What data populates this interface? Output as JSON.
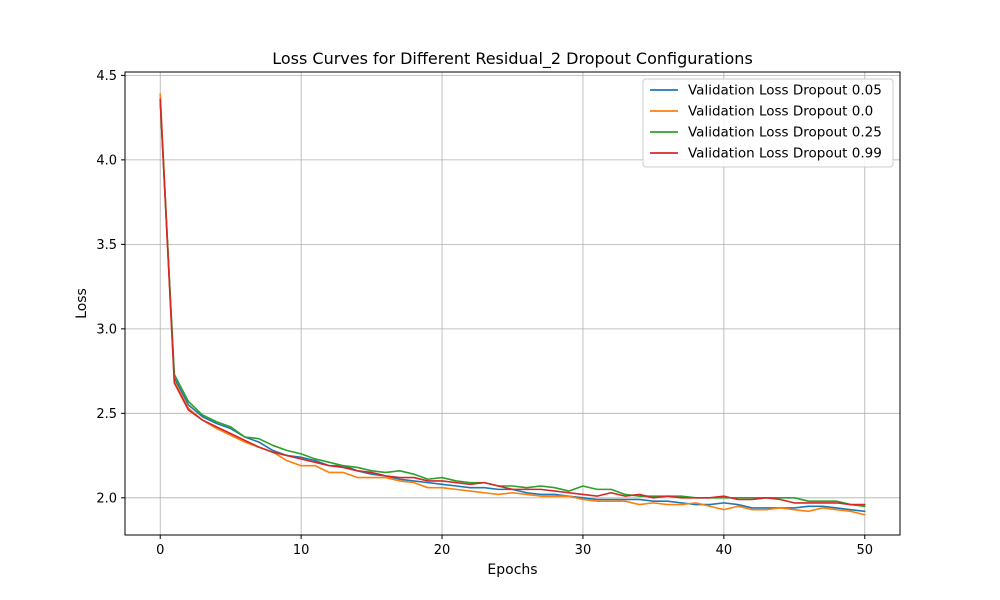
{
  "chart_data": {
    "type": "line",
    "title": "Loss Curves for Different Residual_2 Dropout Configurations",
    "xlabel": "Epochs",
    "ylabel": "Loss",
    "xlim": [
      -2.5,
      52.5
    ],
    "ylim": [
      1.78,
      4.52
    ],
    "xticks": [
      0,
      10,
      20,
      30,
      40,
      50
    ],
    "yticks": [
      2.0,
      2.5,
      3.0,
      3.5,
      4.0,
      4.5
    ],
    "grid": true,
    "legend_position": "top-right",
    "x": [
      0,
      1,
      2,
      3,
      4,
      5,
      6,
      7,
      8,
      9,
      10,
      11,
      12,
      13,
      14,
      15,
      16,
      17,
      18,
      19,
      20,
      21,
      22,
      23,
      24,
      25,
      26,
      27,
      28,
      29,
      30,
      31,
      32,
      33,
      34,
      35,
      36,
      37,
      38,
      39,
      40,
      41,
      42,
      43,
      44,
      45,
      46,
      47,
      48,
      49,
      50
    ],
    "series": [
      {
        "name": "Validation Loss Dropout 0.05",
        "color": "#1f77b4",
        "values": [
          4.36,
          2.71,
          2.55,
          2.48,
          2.44,
          2.41,
          2.36,
          2.33,
          2.28,
          2.25,
          2.24,
          2.22,
          2.19,
          2.19,
          2.16,
          2.14,
          2.13,
          2.11,
          2.1,
          2.09,
          2.08,
          2.07,
          2.06,
          2.06,
          2.05,
          2.05,
          2.03,
          2.02,
          2.02,
          2.01,
          2.0,
          1.99,
          1.99,
          1.99,
          1.99,
          1.98,
          1.98,
          1.97,
          1.96,
          1.96,
          1.97,
          1.96,
          1.94,
          1.94,
          1.94,
          1.94,
          1.95,
          1.95,
          1.94,
          1.93,
          1.92
        ]
      },
      {
        "name": "Validation Loss Dropout 0.0",
        "color": "#ff7f0e",
        "values": [
          4.39,
          2.69,
          2.53,
          2.46,
          2.41,
          2.37,
          2.33,
          2.3,
          2.27,
          2.22,
          2.19,
          2.19,
          2.15,
          2.15,
          2.12,
          2.12,
          2.12,
          2.1,
          2.09,
          2.06,
          2.06,
          2.05,
          2.04,
          2.03,
          2.02,
          2.03,
          2.02,
          2.01,
          2.01,
          2.01,
          1.99,
          1.98,
          1.98,
          1.98,
          1.96,
          1.97,
          1.96,
          1.96,
          1.97,
          1.95,
          1.93,
          1.95,
          1.93,
          1.93,
          1.94,
          1.93,
          1.92,
          1.94,
          1.93,
          1.92,
          1.9
        ]
      },
      {
        "name": "Validation Loss Dropout 0.25",
        "color": "#2ca02c",
        "values": [
          4.35,
          2.73,
          2.57,
          2.49,
          2.45,
          2.42,
          2.36,
          2.35,
          2.31,
          2.28,
          2.26,
          2.23,
          2.21,
          2.19,
          2.18,
          2.16,
          2.15,
          2.16,
          2.14,
          2.11,
          2.12,
          2.1,
          2.09,
          2.09,
          2.07,
          2.07,
          2.06,
          2.07,
          2.06,
          2.04,
          2.07,
          2.05,
          2.05,
          2.02,
          2.01,
          2.01,
          2.01,
          2.01,
          2.0,
          2.0,
          2.0,
          2.0,
          2.0,
          2.0,
          2.0,
          2.0,
          1.98,
          1.98,
          1.98,
          1.96,
          1.95
        ]
      },
      {
        "name": "Validation Loss Dropout 0.99",
        "color": "#d62728",
        "values": [
          4.36,
          2.68,
          2.52,
          2.46,
          2.42,
          2.38,
          2.34,
          2.3,
          2.27,
          2.25,
          2.23,
          2.21,
          2.19,
          2.18,
          2.16,
          2.15,
          2.13,
          2.12,
          2.12,
          2.1,
          2.1,
          2.09,
          2.08,
          2.09,
          2.07,
          2.05,
          2.05,
          2.05,
          2.04,
          2.03,
          2.02,
          2.01,
          2.03,
          2.01,
          2.02,
          2.0,
          2.01,
          2.0,
          2.0,
          2.0,
          2.01,
          1.99,
          1.99,
          2.0,
          1.99,
          1.97,
          1.97,
          1.97,
          1.97,
          1.96,
          1.96
        ]
      }
    ]
  }
}
